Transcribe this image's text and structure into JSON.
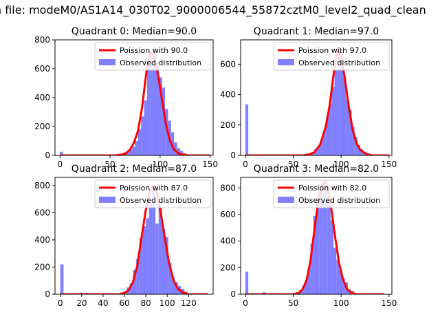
{
  "suptitle": "n file: modeM0/AS1A14_030T02_9000006544_55872cztM0_level2_quad_clean",
  "colors": {
    "hist": "#7f7fff",
    "line": "#ff0000",
    "axis": "#000000"
  },
  "chart_data": [
    {
      "type": "histogram+line",
      "title": "Quadrant 0: Median=90.0",
      "median": 90.0,
      "legend": [
        "Poission with 90.0",
        "Observed distribution"
      ],
      "legend_position": "top-right",
      "xlim": [
        -5,
        153
      ],
      "ylim": [
        0,
        800
      ],
      "xticks": [
        0,
        50,
        100,
        150
      ],
      "yticks": [
        0,
        200,
        400,
        600,
        800
      ],
      "bars": [
        [
          0,
          25
        ],
        [
          60,
          10
        ],
        [
          63,
          20
        ],
        [
          66,
          30
        ],
        [
          69,
          40
        ],
        [
          72,
          60
        ],
        [
          75,
          100
        ],
        [
          78,
          180
        ],
        [
          81,
          270
        ],
        [
          84,
          380
        ],
        [
          87,
          620
        ],
        [
          90,
          690
        ],
        [
          93,
          750
        ],
        [
          96,
          650
        ],
        [
          99,
          540
        ],
        [
          102,
          470
        ],
        [
          105,
          320
        ],
        [
          108,
          240
        ],
        [
          111,
          160
        ],
        [
          114,
          90
        ],
        [
          117,
          50
        ],
        [
          120,
          30
        ],
        [
          123,
          15
        ],
        [
          126,
          8
        ],
        [
          129,
          5
        ]
      ],
      "line": [
        [
          0,
          0
        ],
        [
          55,
          0
        ],
        [
          62,
          5
        ],
        [
          66,
          15
        ],
        [
          70,
          40
        ],
        [
          74,
          90
        ],
        [
          78,
          170
        ],
        [
          82,
          330
        ],
        [
          86,
          560
        ],
        [
          90,
          720
        ],
        [
          94,
          680
        ],
        [
          98,
          560
        ],
        [
          102,
          380
        ],
        [
          106,
          210
        ],
        [
          110,
          100
        ],
        [
          114,
          40
        ],
        [
          118,
          15
        ],
        [
          122,
          5
        ],
        [
          128,
          0
        ],
        [
          150,
          0
        ]
      ]
    },
    {
      "type": "histogram+line",
      "title": "Quadrant 1: Median=97.0",
      "median": 97.0,
      "legend": [
        "Poission with 97.0",
        "Observed distribution"
      ],
      "legend_position": "top-right",
      "xlim": [
        -5,
        153
      ],
      "ylim": [
        0,
        760
      ],
      "xticks": [
        0,
        50,
        100,
        150
      ],
      "yticks": [
        0,
        200,
        400,
        600
      ],
      "bars": [
        [
          0,
          335
        ],
        [
          63,
          5
        ],
        [
          66,
          10
        ],
        [
          69,
          20
        ],
        [
          72,
          40
        ],
        [
          75,
          60
        ],
        [
          78,
          100
        ],
        [
          81,
          160
        ],
        [
          84,
          250
        ],
        [
          87,
          340
        ],
        [
          90,
          450
        ],
        [
          93,
          560
        ],
        [
          96,
          690
        ],
        [
          99,
          600
        ],
        [
          102,
          520
        ],
        [
          105,
          370
        ],
        [
          108,
          300
        ],
        [
          111,
          190
        ],
        [
          114,
          120
        ],
        [
          117,
          70
        ],
        [
          120,
          40
        ],
        [
          123,
          25
        ],
        [
          126,
          15
        ],
        [
          129,
          8
        ]
      ],
      "line": [
        [
          0,
          0
        ],
        [
          60,
          0
        ],
        [
          66,
          5
        ],
        [
          72,
          20
        ],
        [
          78,
          70
        ],
        [
          84,
          190
        ],
        [
          88,
          330
        ],
        [
          92,
          530
        ],
        [
          96,
          700
        ],
        [
          100,
          650
        ],
        [
          104,
          500
        ],
        [
          108,
          320
        ],
        [
          112,
          170
        ],
        [
          116,
          80
        ],
        [
          120,
          35
        ],
        [
          126,
          10
        ],
        [
          132,
          0
        ],
        [
          150,
          0
        ]
      ]
    },
    {
      "type": "histogram+line",
      "title": "Quadrant 2: Median=87.0",
      "median": 87.0,
      "legend": [
        "Poission with 87.0",
        "Observed distribution"
      ],
      "legend_position": "top-right",
      "xlim": [
        -5,
        143
      ],
      "ylim": [
        0,
        860
      ],
      "xticks": [
        0,
        20,
        40,
        60,
        80,
        100,
        120
      ],
      "yticks": [
        0,
        200,
        400,
        600,
        800
      ],
      "bars": [
        [
          0,
          220
        ],
        [
          18,
          12
        ],
        [
          23,
          10
        ],
        [
          56,
          10
        ],
        [
          59,
          20
        ],
        [
          62,
          50
        ],
        [
          65,
          80
        ],
        [
          68,
          180
        ],
        [
          71,
          260
        ],
        [
          74,
          410
        ],
        [
          77,
          500
        ],
        [
          80,
          560
        ],
        [
          83,
          670
        ],
        [
          86,
          760
        ],
        [
          89,
          520
        ],
        [
          92,
          650
        ],
        [
          95,
          480
        ],
        [
          98,
          420
        ],
        [
          101,
          230
        ],
        [
          104,
          130
        ],
        [
          107,
          90
        ],
        [
          110,
          60
        ],
        [
          113,
          40
        ],
        [
          116,
          20
        ]
      ],
      "line": [
        [
          0,
          0
        ],
        [
          55,
          0
        ],
        [
          60,
          10
        ],
        [
          64,
          30
        ],
        [
          68,
          90
        ],
        [
          72,
          210
        ],
        [
          76,
          420
        ],
        [
          80,
          620
        ],
        [
          84,
          760
        ],
        [
          87,
          800
        ],
        [
          90,
          760
        ],
        [
          94,
          600
        ],
        [
          98,
          400
        ],
        [
          102,
          220
        ],
        [
          106,
          100
        ],
        [
          110,
          40
        ],
        [
          114,
          15
        ],
        [
          120,
          0
        ],
        [
          138,
          0
        ]
      ]
    },
    {
      "type": "histogram+line",
      "title": "Quadrant 3: Median=82.0",
      "median": 82.0,
      "legend": [
        "Poission with 82.0",
        "Observed distribution"
      ],
      "legend_position": "top-right",
      "xlim": [
        -5,
        153
      ],
      "ylim": [
        0,
        880
      ],
      "xticks": [
        0,
        50,
        100,
        150
      ],
      "yticks": [
        0,
        200,
        400,
        600,
        800
      ],
      "bars": [
        [
          0,
          170
        ],
        [
          18,
          15
        ],
        [
          50,
          10
        ],
        [
          53,
          15
        ],
        [
          56,
          30
        ],
        [
          59,
          60
        ],
        [
          62,
          100
        ],
        [
          65,
          200
        ],
        [
          68,
          380
        ],
        [
          71,
          590
        ],
        [
          74,
          730
        ],
        [
          77,
          790
        ],
        [
          80,
          840
        ],
        [
          83,
          820
        ],
        [
          86,
          700
        ],
        [
          89,
          560
        ],
        [
          92,
          350
        ],
        [
          95,
          260
        ],
        [
          98,
          180
        ],
        [
          101,
          120
        ],
        [
          104,
          90
        ],
        [
          107,
          40
        ],
        [
          110,
          25
        ],
        [
          113,
          10
        ]
      ],
      "line": [
        [
          0,
          0
        ],
        [
          50,
          0
        ],
        [
          56,
          10
        ],
        [
          60,
          40
        ],
        [
          64,
          110
        ],
        [
          68,
          250
        ],
        [
          72,
          480
        ],
        [
          76,
          700
        ],
        [
          80,
          830
        ],
        [
          83,
          850
        ],
        [
          86,
          800
        ],
        [
          90,
          630
        ],
        [
          94,
          420
        ],
        [
          98,
          230
        ],
        [
          102,
          110
        ],
        [
          106,
          40
        ],
        [
          110,
          15
        ],
        [
          116,
          0
        ],
        [
          145,
          0
        ]
      ]
    }
  ]
}
